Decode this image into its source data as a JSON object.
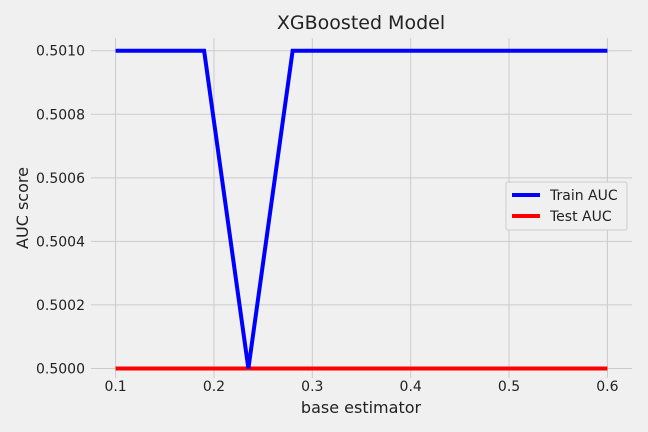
{
  "chart_data": {
    "type": "line",
    "title": "XGBoosted Model",
    "xlabel": "base estimator",
    "ylabel": "AUC score",
    "xlim": [
      0.075,
      0.625
    ],
    "ylim": [
      0.49997,
      0.50104
    ],
    "x_ticks": [
      0.1,
      0.2,
      0.3,
      0.4,
      0.5,
      0.6
    ],
    "x_tick_labels": [
      "0.1",
      "0.2",
      "0.3",
      "0.4",
      "0.5",
      "0.6"
    ],
    "y_ticks": [
      0.5,
      0.5002,
      0.5004,
      0.5006,
      0.5008,
      0.501
    ],
    "y_tick_labels": [
      "0.5000",
      "0.5002",
      "0.5004",
      "0.5006",
      "0.5008",
      "0.5010"
    ],
    "grid": true,
    "legend_position": "center-right",
    "series": [
      {
        "name": "Train AUC",
        "color": "#0000ff",
        "x": [
          0.1,
          0.19,
          0.235,
          0.28,
          0.6
        ],
        "y": [
          0.501,
          0.501,
          0.5,
          0.501,
          0.501
        ]
      },
      {
        "name": "Test AUC",
        "color": "#ff0000",
        "x": [
          0.1,
          0.6
        ],
        "y": [
          0.5,
          0.5
        ]
      }
    ]
  }
}
